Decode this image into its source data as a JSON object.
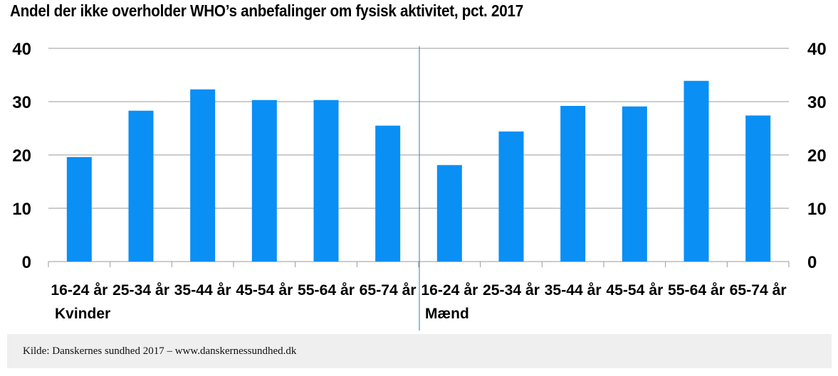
{
  "title": "Andel der ikke overholder WHO’s anbefalinger om fysisk aktivitet, pct. 2017",
  "source": "Kilde: Danskernes sundhed 2017 – www.danskernessundhed.dk",
  "colors": {
    "bar": "#0a8ff5",
    "divider": "#2a7fbf",
    "grid": "#9a9a9a"
  },
  "chart_data": {
    "type": "bar",
    "title": "Andel der ikke overholder WHO’s anbefalinger om fysisk aktivitet, pct. 2017",
    "ylim": [
      0,
      40
    ],
    "yticks": [
      0,
      10,
      20,
      30,
      40
    ],
    "grid": true,
    "groups": [
      {
        "name": "Kvinder",
        "categories": [
          "16-24 år",
          "25-34 år",
          "35-44 år",
          "45-54 år",
          "55-64 år",
          "65-74 år"
        ],
        "values": [
          19.6,
          28.3,
          32.3,
          30.3,
          30.3,
          25.5
        ]
      },
      {
        "name": "Mænd",
        "categories": [
          "16-24 år",
          "25-34 år",
          "35-44 år",
          "45-54 år",
          "55-64 år",
          "65-74 år"
        ],
        "values": [
          18.1,
          24.4,
          29.2,
          29.1,
          33.9,
          27.4
        ]
      }
    ]
  }
}
